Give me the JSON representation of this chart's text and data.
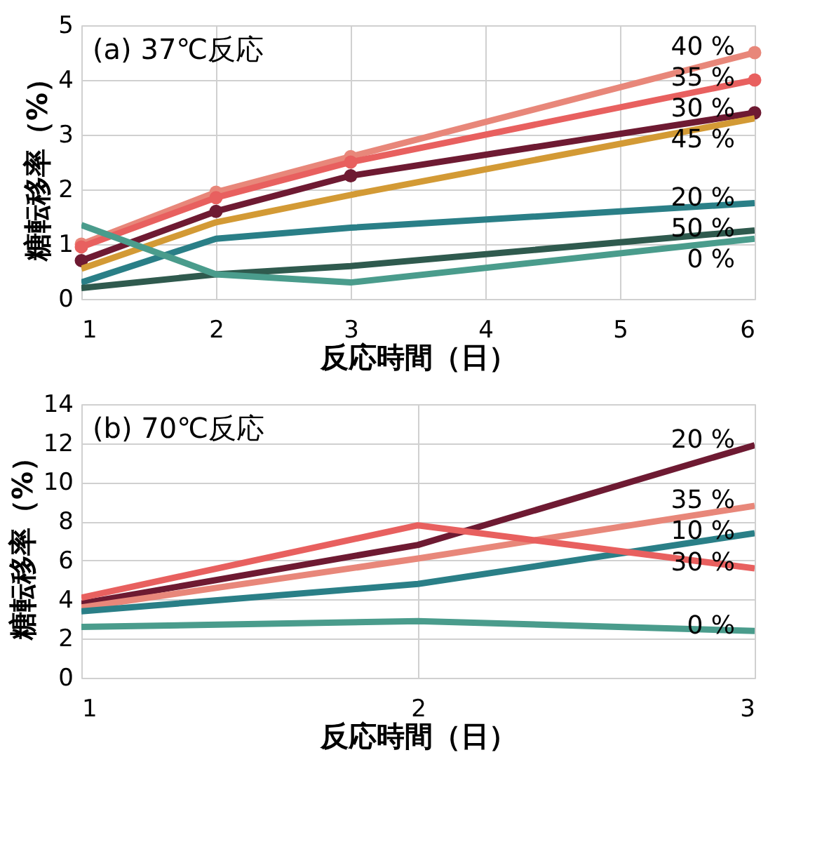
{
  "chart_data": [
    {
      "type": "line",
      "title": "(a) 37℃反応",
      "xlabel": "反応時間（日）",
      "ylabel": "糖転移率（%）",
      "x": [
        1,
        2,
        3,
        6
      ],
      "xlim": [
        1,
        6
      ],
      "xticks": [
        1,
        2,
        3,
        4,
        5,
        6
      ],
      "ylim": [
        0,
        5
      ],
      "yticks": [
        0,
        1,
        2,
        3,
        4,
        5
      ],
      "grid": true,
      "line_style": "solid",
      "series": [
        {
          "name": "40 %",
          "color": "#e8877a",
          "values": [
            1.0,
            1.95,
            2.6,
            4.5
          ],
          "marker": "circle"
        },
        {
          "name": "35 %",
          "color": "#e8605f",
          "values": [
            0.95,
            1.85,
            2.5,
            4.0
          ],
          "marker": "circle"
        },
        {
          "name": "30 %",
          "color": "#6e1a32",
          "values": [
            0.7,
            1.6,
            2.25,
            3.4
          ],
          "marker": "circle"
        },
        {
          "name": "45 %",
          "color": "#d39a35",
          "values": [
            0.55,
            1.4,
            1.9,
            3.3
          ],
          "marker": "none"
        },
        {
          "name": "20 %",
          "color": "#2a7f87",
          "values": [
            0.3,
            1.1,
            1.3,
            1.75
          ],
          "marker": "none"
        },
        {
          "name": "50 %",
          "color": "#2f5a4e",
          "values": [
            0.2,
            0.45,
            0.6,
            1.25
          ],
          "marker": "none"
        },
        {
          "name": "0 %",
          "color": "#4a9c8c",
          "values": [
            1.35,
            0.45,
            0.3,
            1.1
          ],
          "marker": "none"
        }
      ]
    },
    {
      "type": "line",
      "title": "(b) 70℃反応",
      "xlabel": "反応時間（日）",
      "ylabel": "糖転移率（%）",
      "x": [
        1,
        2,
        3
      ],
      "xlim": [
        1,
        3
      ],
      "xticks": [
        1,
        2,
        3
      ],
      "ylim": [
        0,
        14
      ],
      "yticks": [
        0,
        2,
        4,
        6,
        8,
        10,
        12,
        14
      ],
      "grid": true,
      "line_style": "solid",
      "series": [
        {
          "name": "20 %",
          "color": "#6e1a32",
          "values": [
            3.8,
            6.8,
            11.9
          ]
        },
        {
          "name": "35 %",
          "color": "#e8877a",
          "values": [
            3.6,
            6.1,
            8.8
          ]
        },
        {
          "name": "10 %",
          "color": "#2a7f87",
          "values": [
            3.4,
            4.8,
            7.4
          ]
        },
        {
          "name": "30 %",
          "color": "#e8605f",
          "values": [
            4.1,
            7.8,
            5.6
          ]
        },
        {
          "name": "0 %",
          "color": "#4a9c8c",
          "values": [
            2.6,
            2.9,
            2.4
          ]
        }
      ]
    }
  ]
}
